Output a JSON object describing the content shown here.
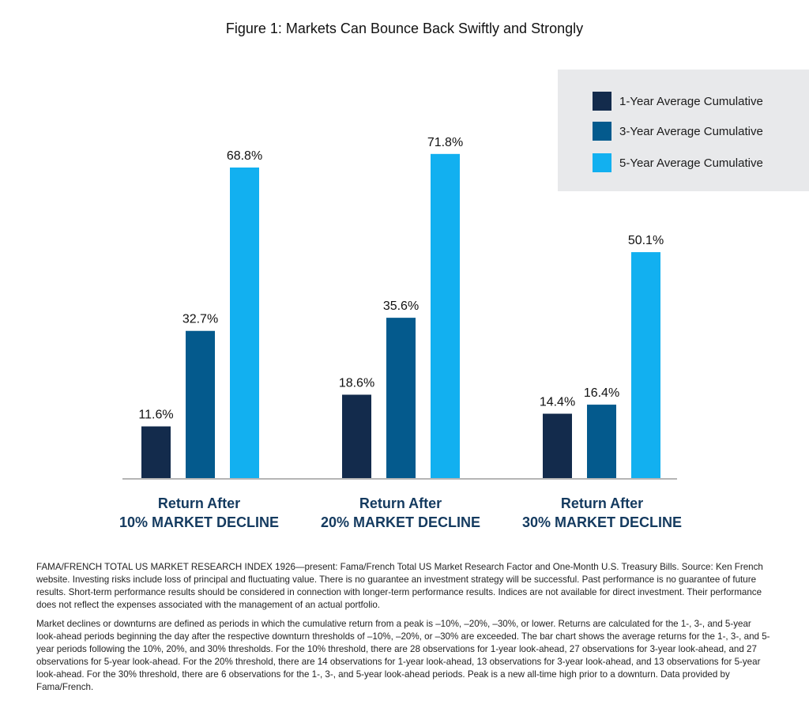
{
  "chart_data": {
    "type": "bar",
    "title": "Figure 1: Markets Can Bounce Back Swiftly and Strongly",
    "categories": [
      {
        "line1": "Return After",
        "line2": "10% MARKET DECLINE"
      },
      {
        "line1": "Return After",
        "line2": "20% MARKET DECLINE"
      },
      {
        "line1": "Return After",
        "line2": "30% MARKET DECLINE"
      }
    ],
    "series": [
      {
        "name": "1-Year Average Cumulative",
        "color": "#132b4c",
        "values": [
          11.6,
          18.6,
          14.4
        ],
        "labels": [
          "11.6%",
          "18.6%",
          "14.4%"
        ]
      },
      {
        "name": "3-Year Average Cumulative",
        "color": "#045a8d",
        "values": [
          32.7,
          35.6,
          16.4
        ],
        "labels": [
          "32.7%",
          "35.6%",
          "16.4%"
        ]
      },
      {
        "name": "5-Year Average Cumulative",
        "color": "#12b0f0",
        "values": [
          68.8,
          71.8,
          50.1
        ],
        "labels": [
          "68.8%",
          "71.8%",
          "50.1%"
        ]
      }
    ],
    "ylim": [
      0,
      80
    ],
    "grid": false,
    "legend": "top-right"
  },
  "notes": [
    "FAMA/FRENCH TOTAL US MARKET RESEARCH INDEX 1926—present: Fama/French Total US Market Research Factor and One-Month U.S. Treasury Bills. Source: Ken French website. Investing risks include loss of principal and fluctuating value. There is no guarantee an investment strategy will be successful. Past performance is no guarantee of future results. Short-term performance results should be considered in connection with longer-term performance results. Indices are not available for direct investment. Their performance does not reflect the expenses associated with the management of an actual portfolio.",
    "Market declines or downturns are defined as periods in which the cumulative return from a peak is –10%, –20%, –30%, or lower. Returns are calculated for the 1-, 3-, and 5-year look-ahead periods beginning the day after the respective downturn thresholds of –10%, –20%, or –30% are exceeded. The bar chart shows the average returns for the 1-, 3-, and 5-year periods following the 10%, 20%, and 30% thresholds. For the 10% threshold, there are 28 observations for 1-year look-ahead, 27 observations for 3-year look-ahead, and 27 observations for 5-year look-ahead. For the 20% threshold, there are 14 observations for 1-year look-ahead, 13 observations for 3-year look-ahead, and 13 observations for 5-year look-ahead. For the 30% threshold, there are 6 observations for the 1-, 3-, and 5-year look-ahead periods. Peak is a new all-time high prior to a downturn. Data provided by Fama/French."
  ]
}
